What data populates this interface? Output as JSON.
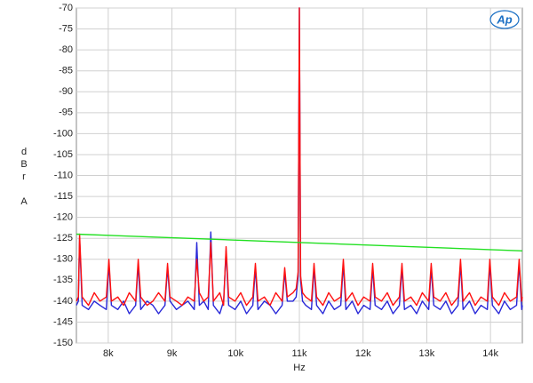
{
  "chart_data": {
    "type": "line",
    "logo": "Ap",
    "xlabel": "Hz",
    "ylabel": "dBr A",
    "xlim": [
      7500,
      14500
    ],
    "ylim": [
      -150,
      -70
    ],
    "xticks": [
      {
        "value": 8000,
        "label": "8k"
      },
      {
        "value": 9000,
        "label": "9k"
      },
      {
        "value": 10000,
        "label": "10k"
      },
      {
        "value": 11000,
        "label": "11k"
      },
      {
        "value": 12000,
        "label": "12k"
      },
      {
        "value": 13000,
        "label": "13k"
      },
      {
        "value": 14000,
        "label": "14k"
      }
    ],
    "yticks": [
      -70,
      -75,
      -80,
      -85,
      -90,
      -95,
      -100,
      -105,
      -110,
      -115,
      -120,
      -125,
      -130,
      -135,
      -140,
      -145,
      -150
    ],
    "grid": true,
    "x": [
      7500,
      7530,
      7550,
      7590,
      7690,
      7780,
      7870,
      7970,
      8010,
      8050,
      8150,
      8240,
      8330,
      8430,
      8470,
      8510,
      8610,
      8700,
      8790,
      8890,
      8930,
      8970,
      9070,
      9160,
      9250,
      9350,
      9390,
      9430,
      9500,
      9570,
      9610,
      9650,
      9750,
      9810,
      9850,
      9890,
      9990,
      10080,
      10170,
      10270,
      10310,
      10350,
      10450,
      10540,
      10630,
      10730,
      10770,
      10810,
      10900,
      10950,
      10980,
      11000,
      11020,
      11050,
      11100,
      11190,
      11230,
      11270,
      11370,
      11460,
      11550,
      11650,
      11690,
      11730,
      11830,
      11920,
      12010,
      12110,
      12150,
      12190,
      12290,
      12380,
      12470,
      12570,
      12610,
      12650,
      12750,
      12840,
      12930,
      13030,
      13070,
      13110,
      13210,
      13300,
      13390,
      13490,
      13530,
      13570,
      13670,
      13760,
      13850,
      13950,
      13990,
      14030,
      14130,
      14220,
      14310,
      14410,
      14450,
      14490,
      14500
    ],
    "series": [
      {
        "color": "#2828d8",
        "values": [
          -141,
          -140,
          -125,
          -141,
          -142,
          -140,
          -141,
          -142,
          -131,
          -141,
          -142,
          -140,
          -143,
          -141,
          -131,
          -142,
          -140,
          -141,
          -143,
          -141,
          -132,
          -140,
          -142,
          -141,
          -140,
          -142,
          -126,
          -141,
          -140,
          -142,
          -123.5,
          -141,
          -143,
          -140,
          -128,
          -141,
          -142,
          -140,
          -143,
          -141,
          -132,
          -142,
          -140,
          -141,
          -143,
          -141,
          -133,
          -140,
          -140,
          -139,
          -134,
          -70,
          -135,
          -140,
          -141,
          -142,
          -132,
          -141,
          -143,
          -140,
          -142,
          -141,
          -131,
          -142,
          -140,
          -143,
          -141,
          -142,
          -132,
          -141,
          -142,
          -140,
          -143,
          -141,
          -132,
          -142,
          -141,
          -143,
          -140,
          -142,
          -132,
          -141,
          -142,
          -140,
          -143,
          -141,
          -131,
          -142,
          -140,
          -143,
          -141,
          -142,
          -131,
          -141,
          -143,
          -140,
          -142,
          -141,
          -131,
          -142,
          -141
        ]
      },
      {
        "color": "#ff1010",
        "values": [
          -140,
          -139,
          -124,
          -139,
          -141,
          -138,
          -140,
          -139,
          -130,
          -140,
          -139,
          -141,
          -138,
          -140,
          -130,
          -139,
          -141,
          -140,
          -138,
          -140,
          -131,
          -139,
          -140,
          -141,
          -139,
          -140,
          -130,
          -138,
          -140,
          -139,
          -126,
          -140,
          -138,
          -141,
          -127,
          -139,
          -140,
          -138,
          -141,
          -139,
          -131,
          -140,
          -139,
          -141,
          -138,
          -140,
          -132,
          -139,
          -138,
          -137,
          -133,
          -70,
          -134,
          -138,
          -139,
          -140,
          -131,
          -139,
          -141,
          -138,
          -140,
          -139,
          -130,
          -140,
          -138,
          -141,
          -139,
          -140,
          -131,
          -139,
          -140,
          -138,
          -141,
          -139,
          -131,
          -140,
          -139,
          -141,
          -138,
          -140,
          -131,
          -139,
          -140,
          -138,
          -141,
          -139,
          -130,
          -140,
          -138,
          -141,
          -139,
          -140,
          -130,
          -139,
          -141,
          -138,
          -140,
          -139,
          -130,
          -140,
          -139
        ]
      },
      {
        "color": "#22e022",
        "x": [
          7500,
          14500
        ],
        "values": [
          -124,
          -128
        ]
      }
    ]
  }
}
